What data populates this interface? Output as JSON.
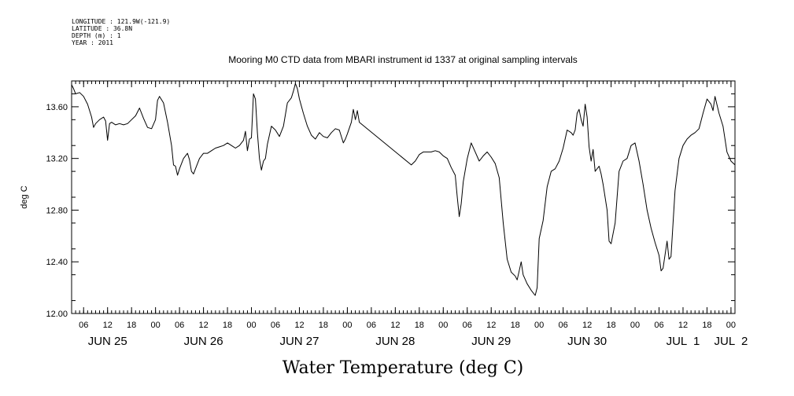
{
  "meta": [
    "LONGITUDE : 121.9W(-121.9)",
    "LATITUDE : 36.8N",
    "DEPTH (m) : 1",
    "YEAR : 2011"
  ],
  "chart_data": {
    "type": "line",
    "title": "Mooring M0 CTD data from MBARI instrument id 1337 at original sampling intervals",
    "xlabel": "Water Temperature (deg C)",
    "ylabel": "deg C",
    "x_units": "hours since 2011-06-25 00:00",
    "xlim": [
      3,
      169
    ],
    "ylim": [
      12.0,
      13.8
    ],
    "y_ticks": [
      12.0,
      12.4,
      12.8,
      13.2,
      13.6
    ],
    "y_tick_labels": [
      "12.00",
      "12.40",
      "12.80",
      "13.20",
      "13.60"
    ],
    "x_hour_ticks": [
      6,
      12,
      18,
      24,
      30,
      36,
      42,
      48,
      54,
      60,
      66,
      72,
      78,
      84,
      90,
      96,
      102,
      108,
      114,
      120,
      126,
      132,
      138,
      144,
      150,
      156,
      162,
      168
    ],
    "x_hour_labels": [
      "06",
      "12",
      "18",
      "00",
      "06",
      "12",
      "18",
      "00",
      "06",
      "12",
      "18",
      "00",
      "06",
      "12",
      "18",
      "00",
      "06",
      "12",
      "18",
      "00",
      "06",
      "12",
      "18",
      "00",
      "06",
      "12",
      "18",
      "00"
    ],
    "day_labels": [
      {
        "text": "JUN 25",
        "x": 12
      },
      {
        "text": "JUN 26",
        "x": 36
      },
      {
        "text": "JUN 27",
        "x": 60
      },
      {
        "text": "JUN 28",
        "x": 84
      },
      {
        "text": "JUN 29",
        "x": 108
      },
      {
        "text": "JUN 30",
        "x": 132
      },
      {
        "text": "JUL  1",
        "x": 156
      },
      {
        "text": "JUL  2",
        "x": 168
      }
    ],
    "series": [
      {
        "values": [
          [
            3.0,
            13.77
          ],
          [
            3.5,
            13.74
          ],
          [
            4.0,
            13.7
          ],
          [
            5.0,
            13.71
          ],
          [
            6.0,
            13.68
          ],
          [
            7.0,
            13.62
          ],
          [
            8.0,
            13.52
          ],
          [
            8.5,
            13.44
          ],
          [
            9.0,
            13.47
          ],
          [
            10.0,
            13.5
          ],
          [
            11.0,
            13.52
          ],
          [
            11.5,
            13.49
          ],
          [
            12.0,
            13.34
          ],
          [
            12.5,
            13.47
          ],
          [
            13.0,
            13.48
          ],
          [
            14.0,
            13.46
          ],
          [
            15.0,
            13.47
          ],
          [
            16.0,
            13.46
          ],
          [
            17.0,
            13.47
          ],
          [
            18.0,
            13.5
          ],
          [
            19.0,
            13.53
          ],
          [
            20.0,
            13.59
          ],
          [
            21.0,
            13.51
          ],
          [
            22.0,
            13.44
          ],
          [
            23.0,
            13.43
          ],
          [
            24.0,
            13.5
          ],
          [
            24.5,
            13.65
          ],
          [
            25.0,
            13.68
          ],
          [
            26.0,
            13.63
          ],
          [
            27.0,
            13.48
          ],
          [
            28.0,
            13.3
          ],
          [
            28.5,
            13.15
          ],
          [
            29.0,
            13.14
          ],
          [
            29.5,
            13.07
          ],
          [
            30.0,
            13.12
          ],
          [
            31.0,
            13.2
          ],
          [
            32.0,
            13.24
          ],
          [
            32.5,
            13.19
          ],
          [
            33.0,
            13.1
          ],
          [
            33.5,
            13.08
          ],
          [
            34.0,
            13.12
          ],
          [
            35.0,
            13.2
          ],
          [
            36.0,
            13.24
          ],
          [
            37.0,
            13.24
          ],
          [
            38.0,
            13.26
          ],
          [
            39.0,
            13.28
          ],
          [
            40.0,
            13.29
          ],
          [
            41.0,
            13.3
          ],
          [
            42.0,
            13.32
          ],
          [
            43.0,
            13.3
          ],
          [
            44.0,
            13.28
          ],
          [
            45.0,
            13.3
          ],
          [
            46.0,
            13.34
          ],
          [
            46.5,
            13.41
          ],
          [
            47.0,
            13.26
          ],
          [
            47.5,
            13.35
          ],
          [
            48.0,
            13.36
          ],
          [
            48.5,
            13.7
          ],
          [
            49.0,
            13.66
          ],
          [
            49.5,
            13.4
          ],
          [
            50.0,
            13.2
          ],
          [
            50.5,
            13.11
          ],
          [
            51.0,
            13.18
          ],
          [
            51.5,
            13.2
          ],
          [
            52.0,
            13.31
          ],
          [
            53.0,
            13.45
          ],
          [
            54.0,
            13.42
          ],
          [
            55.0,
            13.37
          ],
          [
            56.0,
            13.45
          ],
          [
            57.0,
            13.63
          ],
          [
            58.0,
            13.67
          ],
          [
            58.5,
            13.72
          ],
          [
            59.0,
            13.78
          ],
          [
            59.5,
            13.74
          ],
          [
            60.0,
            13.66
          ],
          [
            61.0,
            13.55
          ],
          [
            62.0,
            13.45
          ],
          [
            63.0,
            13.38
          ],
          [
            64.0,
            13.35
          ],
          [
            65.0,
            13.4
          ],
          [
            66.0,
            13.37
          ],
          [
            67.0,
            13.36
          ],
          [
            68.0,
            13.4
          ],
          [
            69.0,
            13.43
          ],
          [
            70.0,
            13.42
          ],
          [
            71.0,
            13.32
          ],
          [
            71.5,
            13.35
          ],
          [
            72.0,
            13.39
          ],
          [
            73.0,
            13.48
          ],
          [
            73.5,
            13.58
          ],
          [
            74.0,
            13.5
          ],
          [
            74.5,
            13.57
          ],
          [
            75.0,
            13.48
          ],
          [
            88.0,
            13.15
          ],
          [
            89.0,
            13.18
          ],
          [
            90.0,
            13.23
          ],
          [
            91.0,
            13.25
          ],
          [
            92.0,
            13.25
          ],
          [
            93.0,
            13.25
          ],
          [
            94.0,
            13.26
          ],
          [
            95.0,
            13.25
          ],
          [
            96.0,
            13.22
          ],
          [
            97.0,
            13.2
          ],
          [
            98.0,
            13.13
          ],
          [
            99.0,
            13.07
          ],
          [
            99.5,
            12.9
          ],
          [
            100.0,
            12.75
          ],
          [
            100.5,
            12.85
          ],
          [
            101.0,
            13.02
          ],
          [
            102.0,
            13.2
          ],
          [
            103.0,
            13.32
          ],
          [
            104.0,
            13.25
          ],
          [
            105.0,
            13.18
          ],
          [
            106.0,
            13.22
          ],
          [
            107.0,
            13.25
          ],
          [
            108.0,
            13.21
          ],
          [
            109.0,
            13.16
          ],
          [
            110.0,
            13.05
          ],
          [
            111.0,
            12.7
          ],
          [
            112.0,
            12.42
          ],
          [
            113.0,
            12.32
          ],
          [
            114.0,
            12.29
          ],
          [
            114.5,
            12.26
          ],
          [
            115.0,
            12.33
          ],
          [
            115.5,
            12.4
          ],
          [
            116.0,
            12.3
          ],
          [
            117.0,
            12.23
          ],
          [
            118.0,
            12.18
          ],
          [
            119.0,
            12.14
          ],
          [
            119.5,
            12.2
          ],
          [
            120.0,
            12.58
          ],
          [
            121.0,
            12.72
          ],
          [
            122.0,
            12.98
          ],
          [
            123.0,
            13.1
          ],
          [
            124.0,
            13.12
          ],
          [
            125.0,
            13.18
          ],
          [
            126.0,
            13.28
          ],
          [
            127.0,
            13.42
          ],
          [
            128.0,
            13.4
          ],
          [
            128.5,
            13.38
          ],
          [
            129.0,
            13.42
          ],
          [
            129.5,
            13.55
          ],
          [
            130.0,
            13.58
          ],
          [
            130.5,
            13.5
          ],
          [
            131.0,
            13.45
          ],
          [
            131.5,
            13.62
          ],
          [
            132.0,
            13.52
          ],
          [
            132.5,
            13.29
          ],
          [
            133.0,
            13.18
          ],
          [
            133.5,
            13.27
          ],
          [
            134.0,
            13.1
          ],
          [
            135.0,
            13.14
          ],
          [
            135.5,
            13.08
          ],
          [
            136.0,
            13.0
          ],
          [
            137.0,
            12.8
          ],
          [
            137.5,
            12.56
          ],
          [
            138.0,
            12.54
          ],
          [
            139.0,
            12.7
          ],
          [
            140.0,
            13.1
          ],
          [
            141.0,
            13.18
          ],
          [
            142.0,
            13.2
          ],
          [
            143.0,
            13.3
          ],
          [
            144.0,
            13.32
          ],
          [
            145.0,
            13.18
          ],
          [
            146.0,
            13.0
          ],
          [
            147.0,
            12.8
          ],
          [
            148.0,
            12.66
          ],
          [
            149.0,
            12.55
          ],
          [
            150.0,
            12.45
          ],
          [
            150.5,
            12.33
          ],
          [
            151.0,
            12.35
          ],
          [
            152.0,
            12.56
          ],
          [
            152.5,
            12.42
          ],
          [
            153.0,
            12.44
          ],
          [
            154.0,
            12.95
          ],
          [
            155.0,
            13.2
          ],
          [
            156.0,
            13.3
          ],
          [
            157.0,
            13.35
          ],
          [
            158.0,
            13.38
          ],
          [
            159.0,
            13.4
          ],
          [
            160.0,
            13.43
          ],
          [
            161.0,
            13.55
          ],
          [
            162.0,
            13.66
          ],
          [
            163.0,
            13.62
          ],
          [
            163.5,
            13.57
          ],
          [
            164.0,
            13.68
          ],
          [
            165.0,
            13.55
          ],
          [
            166.0,
            13.45
          ],
          [
            167.0,
            13.25
          ],
          [
            168.0,
            13.18
          ],
          [
            169.0,
            13.15
          ]
        ]
      }
    ]
  }
}
